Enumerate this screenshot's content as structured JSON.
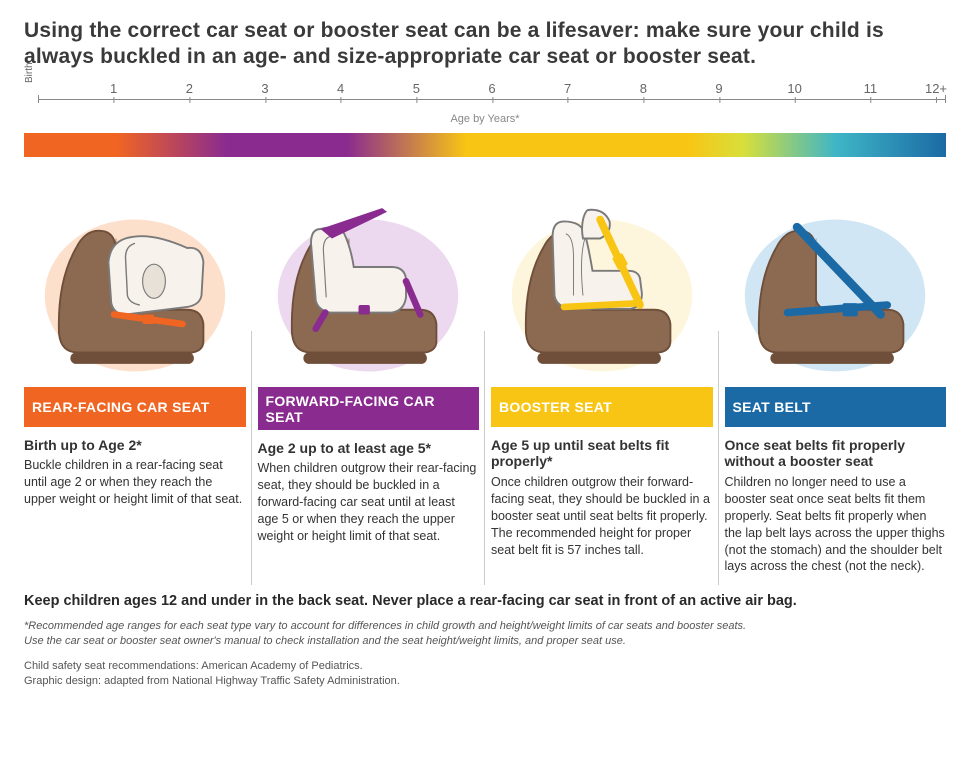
{
  "headline": "Using the correct car seat or booster seat can be a lifesaver: make sure your child is always buckled in an age- and size-appropriate car seat or booster seat.",
  "axis": {
    "birth_label": "Birth",
    "caption": "Age by Years*",
    "ticks": [
      "1",
      "2",
      "3",
      "4",
      "5",
      "6",
      "7",
      "8",
      "9",
      "10",
      "11",
      "12+"
    ],
    "start": 0,
    "end": 12
  },
  "gradient": {
    "stops": [
      {
        "pct": 0,
        "color": "#f16522"
      },
      {
        "pct": 10,
        "color": "#f16522"
      },
      {
        "pct": 22,
        "color": "#8a2b8f"
      },
      {
        "pct": 35,
        "color": "#8a2b8f"
      },
      {
        "pct": 48,
        "color": "#f9c514"
      },
      {
        "pct": 72,
        "color": "#f9c514"
      },
      {
        "pct": 78,
        "color": "#d8df3a"
      },
      {
        "pct": 88,
        "color": "#3fb6c6"
      },
      {
        "pct": 100,
        "color": "#1b6aa5"
      }
    ]
  },
  "palette": {
    "orange": "#f16522",
    "purple": "#8a2b8f",
    "yellow": "#f9c514",
    "blue": "#1b6aa5",
    "seat_brown": "#8c6a52",
    "seat_brown_dark": "#6f4f39",
    "child_seat_fill": "#f7f2ec",
    "child_seat_stroke": "#7a7a7a"
  },
  "stages": [
    {
      "key": "rear",
      "label": "REAR-FACING CAR SEAT",
      "color": "#f16522",
      "glow": "#f9a66a",
      "age": "Birth up to Age 2*",
      "body": "Buckle children in a rear-facing seat until age 2 or when they reach the upper weight or height limit of that seat."
    },
    {
      "key": "forward",
      "label": "FORWARD-FACING CAR SEAT",
      "color": "#8a2b8f",
      "glow": "#c98fd0",
      "age": "Age 2 up to at least age 5*",
      "body": "When children outgrow their rear-facing seat, they should be buckled in a forward-facing car seat until at least age 5 or when they reach the upper weight or height limit of that seat."
    },
    {
      "key": "booster",
      "label": "BOOSTER SEAT",
      "color": "#f9c514",
      "glow": "#fde49a",
      "age": "Age 5 up until seat belts fit properly*",
      "body": "Once children outgrow their forward-facing seat, they should be buckled in a booster seat until seat belts fit properly. The recommended height for proper seat belt fit is 57 inches tall."
    },
    {
      "key": "belt",
      "label": "SEAT BELT",
      "color": "#1b6aa5",
      "glow": "#7ab6e0",
      "age": "Once seat belts fit properly without a booster seat",
      "body": "Children no longer need to use a booster seat once seat belts fit them properly. Seat belts fit properly when the lap belt lays across the upper thighs (not the stomach) and the shoulder belt lays across the chest (not the neck)."
    }
  ],
  "warning": "Keep children ages 12 and under in the back seat.  Never place a rear-facing car seat in front of an active air bag.",
  "footnote_line1": "*Recommended age ranges for each seat type vary to account for differences in child growth and height/weight limits of car seats and booster seats.",
  "footnote_line2": "Use the car seat or booster seat owner's manual to check installation and the seat height/weight limits, and proper seat use.",
  "credit_line1": "Child safety seat recommendations: American Academy of Pediatrics.",
  "credit_line2": "Graphic design: adapted from National Highway Traffic Safety Administration."
}
